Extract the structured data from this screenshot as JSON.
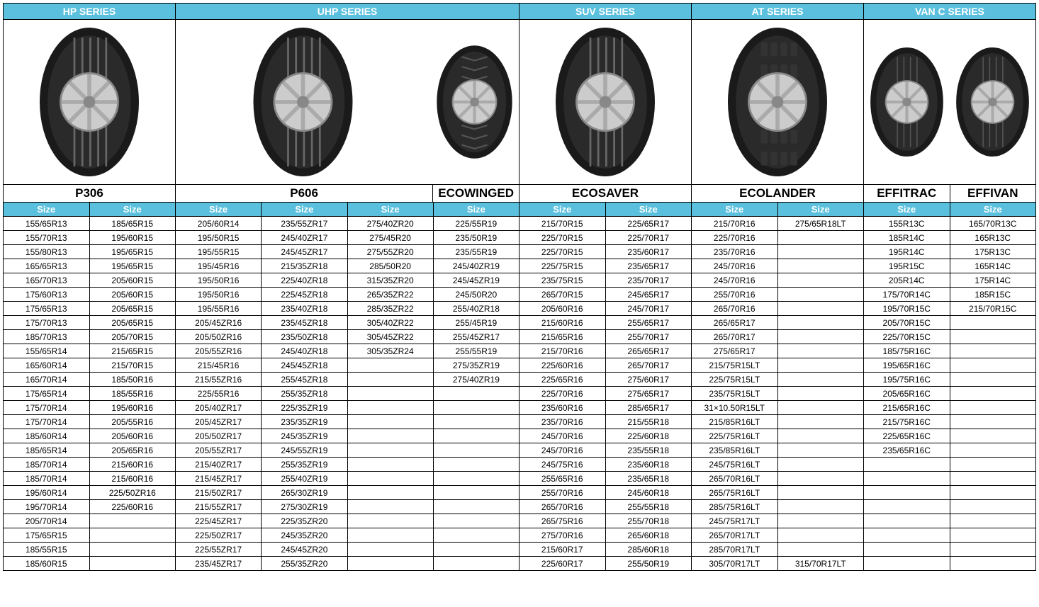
{
  "colors": {
    "header_bg": "#5bc0de",
    "header_fg": "#ffffff",
    "border": "#000000",
    "text": "#000000"
  },
  "size_label": "Size",
  "num_rows": 25,
  "series": [
    {
      "name": "HP SERIES",
      "models": [
        {
          "name": "P306",
          "tire_style": "tread",
          "columns": [
            [
              "155/65R13",
              "155/70R13",
              "155/80R13",
              "165/65R13",
              "165/70R13",
              "175/60R13",
              "175/65R13",
              "175/70R13",
              "185/70R13",
              "155/65R14",
              "165/60R14",
              "165/70R14",
              "175/65R14",
              "175/70R14",
              "175/70R14",
              "185/60R14",
              "185/65R14",
              "185/70R14",
              "185/70R14",
              "195/60R14",
              "195/70R14",
              "205/70R14",
              "175/65R15",
              "185/55R15",
              "185/60R15"
            ],
            [
              "185/65R15",
              "195/60R15",
              "195/65R15",
              "195/65R15",
              "205/60R15",
              "205/60R15",
              "205/65R15",
              "205/65R15",
              "205/70R15",
              "215/65R15",
              "215/70R15",
              "185/50R16",
              "185/55R16",
              "195/60R16",
              "205/55R16",
              "205/60R16",
              "205/65R16",
              "215/60R16",
              "215/60R16",
              "225/50ZR16",
              "225/60R16",
              "",
              "",
              "",
              ""
            ]
          ]
        }
      ]
    },
    {
      "name": "UHP SERIES",
      "models": [
        {
          "name": "P606",
          "tire_style": "tread",
          "columns": [
            [
              "205/60R14",
              "195/50R15",
              "195/55R15",
              "195/45R16",
              "195/50R16",
              "195/50R16",
              "195/55R16",
              "205/45ZR16",
              "205/50ZR16",
              "205/55ZR16",
              "215/45R16",
              "215/55ZR16",
              "225/55R16",
              "205/40ZR17",
              "205/45ZR17",
              "205/50ZR17",
              "205/55ZR17",
              "215/40ZR17",
              "215/45ZR17",
              "215/50ZR17",
              "215/55ZR17",
              "225/45ZR17",
              "225/50ZR17",
              "225/55ZR17",
              "235/45ZR17"
            ],
            [
              "235/55ZR17",
              "245/40ZR17",
              "245/45ZR17",
              "215/35ZR18",
              "225/40ZR18",
              "225/45ZR18",
              "235/40ZR18",
              "235/45ZR18",
              "235/50ZR18",
              "245/40ZR18",
              "245/45ZR18",
              "255/45ZR18",
              "255/35ZR18",
              "225/35ZR19",
              "235/35ZR19",
              "245/35ZR19",
              "245/55ZR19",
              "255/35ZR19",
              "255/40ZR19",
              "265/30ZR19",
              "275/30ZR19",
              "225/35ZR20",
              "245/35ZR20",
              "245/45ZR20",
              "255/35ZR20"
            ],
            [
              "275/40ZR20",
              "275/45R20",
              "275/55ZR20",
              "285/50R20",
              "315/35ZR20",
              "265/35ZR22",
              "285/35ZR22",
              "305/40ZR22",
              "305/45ZR22",
              "305/35ZR24",
              "",
              "",
              "",
              "",
              "",
              "",
              "",
              "",
              "",
              "",
              "",
              "",
              "",
              "",
              ""
            ]
          ]
        },
        {
          "name": "ECOWINGED",
          "tire_style": "angle",
          "columns": [
            [
              "225/55R19",
              "235/50R19",
              "235/55R19",
              "245/40ZR19",
              "245/45ZR19",
              "245/50R20",
              "255/40ZR18",
              "255/45R19",
              "255/45ZR17",
              "255/55R19",
              "275/35ZR19",
              "275/40ZR19",
              "",
              "",
              "",
              "",
              "",
              "",
              "",
              "",
              "",
              "",
              "",
              "",
              ""
            ]
          ]
        }
      ]
    },
    {
      "name": "SUV SERIES",
      "models": [
        {
          "name": "ECOSAVER",
          "tire_style": "tread",
          "columns": [
            [
              "215/70R15",
              "225/70R15",
              "225/70R15",
              "225/75R15",
              "235/75R15",
              "265/70R15",
              "205/60R16",
              "215/60R16",
              "215/65R16",
              "215/70R16",
              "225/60R16",
              "225/65R16",
              "225/70R16",
              "235/60R16",
              "235/70R16",
              "245/70R16",
              "245/70R16",
              "245/75R16",
              "255/65R16",
              "255/70R16",
              "265/70R16",
              "265/75R16",
              "275/70R16",
              "215/60R17",
              "225/60R17"
            ],
            [
              "225/65R17",
              "225/70R17",
              "235/60R17",
              "235/65R17",
              "235/70R17",
              "245/65R17",
              "245/70R17",
              "255/65R17",
              "255/70R17",
              "265/65R17",
              "265/70R17",
              "275/60R17",
              "275/65R17",
              "285/65R17",
              "215/55R18",
              "225/60R18",
              "235/55R18",
              "235/60R18",
              "235/65R18",
              "245/60R18",
              "255/55R18",
              "255/70R18",
              "265/60R18",
              "285/60R18",
              "255/50R19"
            ]
          ]
        }
      ]
    },
    {
      "name": "AT SERIES",
      "models": [
        {
          "name": "ECOLANDER",
          "tire_style": "knobby",
          "columns": [
            [
              "215/70R16",
              "225/70R16",
              "235/70R16",
              "245/70R16",
              "245/70R16",
              "255/70R16",
              "265/70R16",
              "265/65R17",
              "265/70R17",
              "275/65R17",
              "215/75R15LT",
              "225/75R15LT",
              "235/75R15LT",
              "31×10.50R15LT",
              "215/85R16LT",
              "225/75R16LT",
              "235/85R16LT",
              "245/75R16LT",
              "265/70R16LT",
              "265/75R16LT",
              "285/75R16LT",
              "245/75R17LT",
              "265/70R17LT",
              "285/70R17LT",
              "305/70R17LT"
            ],
            [
              "275/65R18LT",
              "",
              "",
              "",
              "",
              "",
              "",
              "",
              "",
              "",
              "",
              "",
              "",
              "",
              "",
              "",
              "",
              "",
              "",
              "",
              "",
              "",
              "",
              "",
              "315/70R17LT"
            ]
          ]
        }
      ]
    },
    {
      "name": "VAN C SERIES",
      "models": [
        {
          "name": "EFFITRAC",
          "tire_style": "plain",
          "columns": [
            [
              "155R13C",
              "185R14C",
              "195R14C",
              "195R15C",
              "205R14C",
              "175/70R14C",
              "195/70R15C",
              "205/70R15C",
              "225/70R15C",
              "185/75R16C",
              "195/65R16C",
              "195/75R16C",
              "205/65R16C",
              "215/65R16C",
              "215/75R16C",
              "225/65R16C",
              "235/65R16C",
              "",
              "",
              "",
              "",
              "",
              "",
              "",
              ""
            ]
          ]
        },
        {
          "name": "EFFIVAN",
          "tire_style": "plain",
          "columns": [
            [
              "165/70R13C",
              "165R13C",
              "175R13C",
              "165R14C",
              "175R14C",
              "185R15C",
              "215/70R15C",
              "",
              "",
              "",
              "",
              "",
              "",
              "",
              "",
              "",
              "",
              "",
              "",
              "",
              "",
              "",
              "",
              "",
              ""
            ]
          ]
        }
      ]
    }
  ]
}
